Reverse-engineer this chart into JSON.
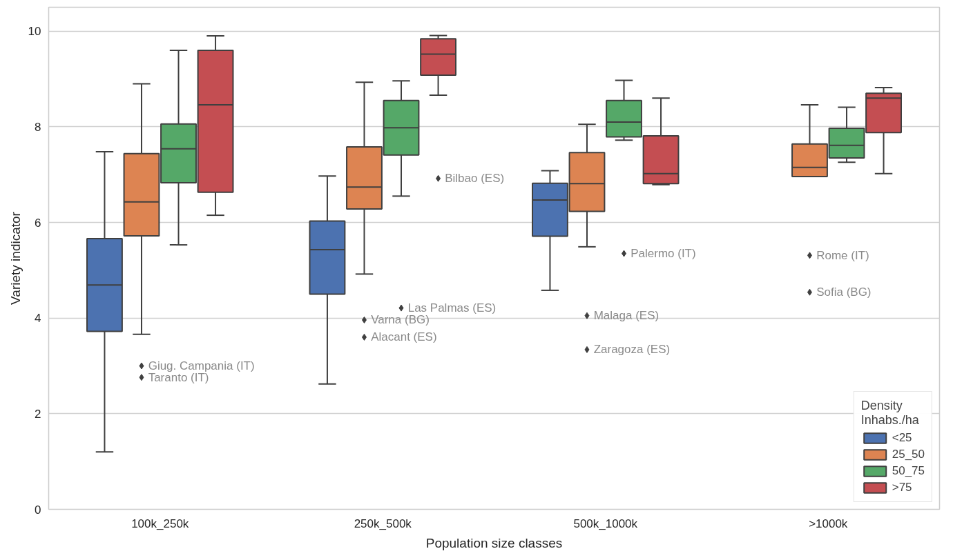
{
  "chart_data": {
    "type": "box",
    "xlabel": "Population size classes",
    "ylabel": "Variety indicator",
    "legend_title": "Density\nInhabs./ha",
    "legend": "bottom right",
    "grid": "y",
    "categories": [
      "100k_250k",
      "250k_500k",
      "500k_1000k",
      ">1000k"
    ],
    "ylim": [
      0,
      10.5
    ],
    "yticks": [
      0,
      2,
      4,
      6,
      8,
      10
    ],
    "series": [
      {
        "name": "<25",
        "color": "#4c72b0",
        "boxes": [
          {
            "low": 1.2,
            "q1": 3.72,
            "median": 4.69,
            "q3": 5.66,
            "high": 7.48
          },
          {
            "low": 2.62,
            "q1": 4.5,
            "median": 5.43,
            "q3": 6.03,
            "high": 6.97
          },
          {
            "low": 4.58,
            "q1": 5.71,
            "median": 6.47,
            "q3": 6.82,
            "high": 7.08
          },
          null
        ]
      },
      {
        "name": "25_50",
        "color": "#dd8452",
        "boxes": [
          {
            "low": 3.66,
            "q1": 5.72,
            "median": 6.43,
            "q3": 7.44,
            "high": 8.9,
            "outliers": [
              3.0,
              2.76
            ]
          },
          {
            "low": 4.92,
            "q1": 6.28,
            "median": 6.74,
            "q3": 7.58,
            "high": 8.93,
            "outliers": [
              3.96,
              3.6
            ]
          },
          {
            "low": 5.49,
            "q1": 6.23,
            "median": 6.81,
            "q3": 7.46,
            "high": 8.05,
            "outliers": [
              4.05,
              3.34
            ]
          },
          {
            "low": 6.96,
            "q1": 6.96,
            "median": 7.15,
            "q3": 7.64,
            "high": 8.46,
            "outliers": [
              5.31,
              4.54
            ]
          }
        ]
      },
      {
        "name": "50_75",
        "color": "#55a868",
        "boxes": [
          {
            "low": 5.53,
            "q1": 6.83,
            "median": 7.54,
            "q3": 8.06,
            "high": 9.6
          },
          {
            "low": 6.55,
            "q1": 7.41,
            "median": 7.98,
            "q3": 8.55,
            "high": 8.96,
            "outliers": [
              4.21
            ]
          },
          {
            "low": 7.72,
            "q1": 7.79,
            "median": 8.1,
            "q3": 8.55,
            "high": 8.97,
            "outliers": [
              5.35
            ]
          },
          {
            "low": 7.26,
            "q1": 7.35,
            "median": 7.61,
            "q3": 7.97,
            "high": 8.41
          }
        ]
      },
      {
        "name": ">75",
        "color": "#c44e52",
        "boxes": [
          {
            "low": 6.15,
            "q1": 6.63,
            "median": 8.46,
            "q3": 9.6,
            "high": 9.9
          },
          {
            "low": 8.66,
            "q1": 9.08,
            "median": 9.52,
            "q3": 9.84,
            "high": 9.91,
            "outliers": [
              6.92
            ]
          },
          {
            "low": 6.79,
            "q1": 6.81,
            "median": 7.02,
            "q3": 7.81,
            "high": 8.6
          },
          {
            "low": 7.02,
            "q1": 7.88,
            "median": 8.6,
            "q3": 8.7,
            "high": 8.82
          }
        ]
      }
    ],
    "annotations": [
      "Giug. Campania (IT)",
      "Taranto (IT)",
      "Varna (BG)",
      "Alacant (ES)",
      "Malaga (ES)",
      "Zaragoza (ES)",
      "Rome (IT)",
      "Sofia (BG)",
      "Las Palmas (ES)",
      "Palermo (IT)",
      "Bilbao (ES)"
    ]
  }
}
